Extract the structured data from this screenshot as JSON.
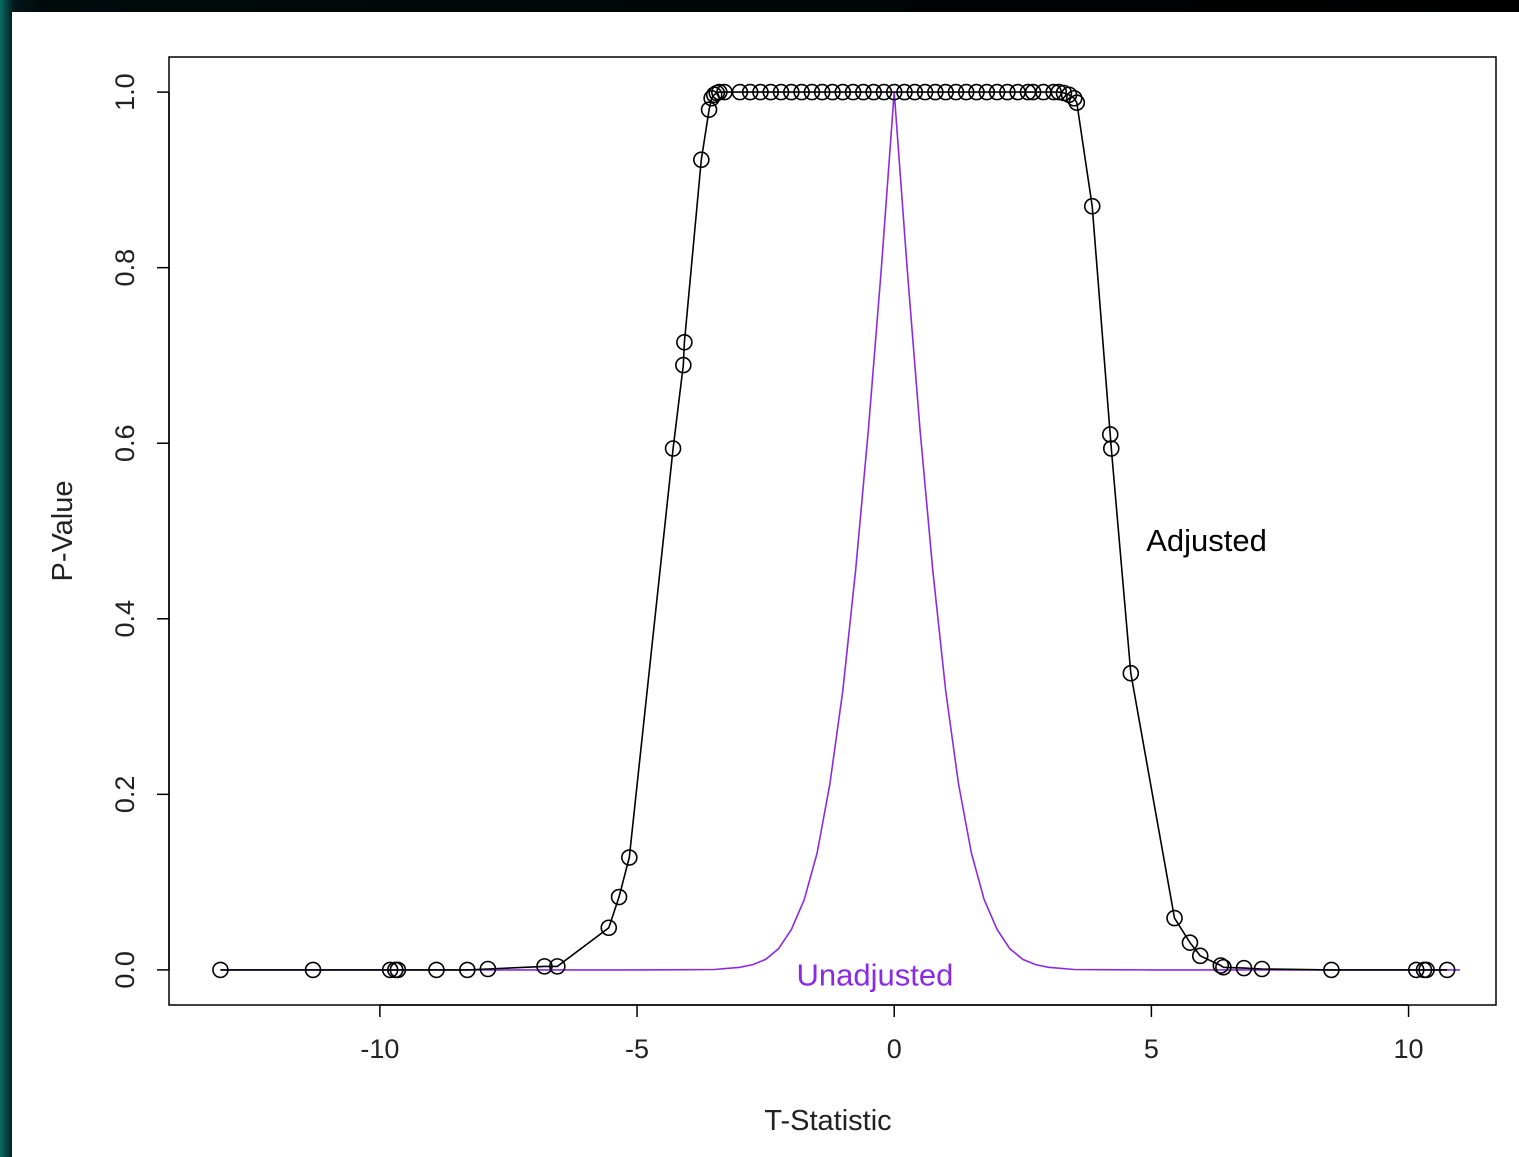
{
  "chart_data": {
    "type": "line",
    "xlabel": "T-Statistic",
    "ylabel": "P-Value",
    "xlim": [
      -14.1,
      11.7
    ],
    "ylim": [
      -0.04,
      1.04
    ],
    "xticks": [
      "-10",
      "-5",
      "0",
      "5",
      "10"
    ],
    "yticks": [
      "0.0",
      "0.2",
      "0.4",
      "0.6",
      "0.8",
      "1.0"
    ],
    "grid": false,
    "annotations": [
      {
        "text": "Adjusted",
        "x": 4.9,
        "y": 0.49,
        "color": "#000000"
      },
      {
        "text": "Unadjusted",
        "x": -1.9,
        "y": -0.005,
        "color": "#8a2be2"
      }
    ],
    "series": [
      {
        "name": "Adjusted",
        "color": "#000000",
        "marker": "open-circle",
        "x": [
          -13.1,
          -11.3,
          -9.8,
          -9.7,
          -9.65,
          -8.9,
          -8.3,
          -7.9,
          -6.8,
          -6.55,
          -5.55,
          -5.35,
          -5.15,
          -4.3,
          -4.1,
          -4.08,
          -3.75,
          -3.6,
          -3.55,
          -3.5,
          -3.45,
          -3.4,
          -3.3,
          -3.0,
          -2.8,
          -2.6,
          -2.4,
          -2.2,
          -2.0,
          -1.8,
          -1.6,
          -1.4,
          -1.2,
          -1.0,
          -0.8,
          -0.6,
          -0.4,
          -0.2,
          0.0,
          0.2,
          0.4,
          0.6,
          0.8,
          1.0,
          1.2,
          1.4,
          1.6,
          1.8,
          2.0,
          2.2,
          2.4,
          2.6,
          2.7,
          2.9,
          3.1,
          3.2,
          3.3,
          3.4,
          3.5,
          3.55,
          3.85,
          4.2,
          4.22,
          4.6,
          5.45,
          5.75,
          5.95,
          6.35,
          6.4,
          6.8,
          7.15,
          8.5,
          10.15,
          10.3,
          10.35,
          10.75
        ],
        "y": [
          0.0,
          0.0,
          0.0,
          0.0,
          0.0,
          0.0,
          0.0,
          0.001,
          0.004,
          0.004,
          0.048,
          0.083,
          0.128,
          0.594,
          0.689,
          0.715,
          0.923,
          0.98,
          0.993,
          0.997,
          0.999,
          1.0,
          1.0,
          1.0,
          1.0,
          1.0,
          1.0,
          1.0,
          1.0,
          1.0,
          1.0,
          1.0,
          1.0,
          1.0,
          1.0,
          1.0,
          1.0,
          1.0,
          1.0,
          1.0,
          1.0,
          1.0,
          1.0,
          1.0,
          1.0,
          1.0,
          1.0,
          1.0,
          1.0,
          1.0,
          1.0,
          1.0,
          1.0,
          1.0,
          1.0,
          1.0,
          0.999,
          0.997,
          0.993,
          0.988,
          0.87,
          0.61,
          0.594,
          0.338,
          0.059,
          0.031,
          0.016,
          0.005,
          0.003,
          0.002,
          0.001,
          0.0,
          0.0,
          0.0,
          0.0,
          0.0
        ]
      },
      {
        "name": "Unadjusted",
        "color": "#8a2be2",
        "marker": "none",
        "x": [
          -13.1,
          -11.0,
          -9.0,
          -7.0,
          -6.0,
          -5.0,
          -4.5,
          -4.0,
          -3.5,
          -3.0,
          -2.75,
          -2.5,
          -2.25,
          -2.0,
          -1.75,
          -1.5,
          -1.25,
          -1.0,
          -0.75,
          -0.5,
          -0.25,
          0.0,
          0.25,
          0.5,
          0.75,
          1.0,
          1.25,
          1.5,
          1.75,
          2.0,
          2.25,
          2.5,
          2.75,
          3.0,
          3.5,
          4.0,
          4.5,
          5.0,
          6.0,
          7.0,
          9.0,
          11.0
        ],
        "y": [
          0.0,
          0.0,
          0.0,
          0.0,
          0.0,
          0.0,
          0.0001,
          0.0002,
          0.0005,
          0.003,
          0.006,
          0.012,
          0.024,
          0.046,
          0.08,
          0.133,
          0.212,
          0.318,
          0.455,
          0.617,
          0.8,
          1.0,
          0.8,
          0.617,
          0.455,
          0.318,
          0.212,
          0.133,
          0.08,
          0.046,
          0.024,
          0.012,
          0.006,
          0.003,
          0.0005,
          0.0002,
          0.0001,
          0.0,
          0.0,
          0.0,
          0.0,
          0.0
        ]
      }
    ]
  }
}
